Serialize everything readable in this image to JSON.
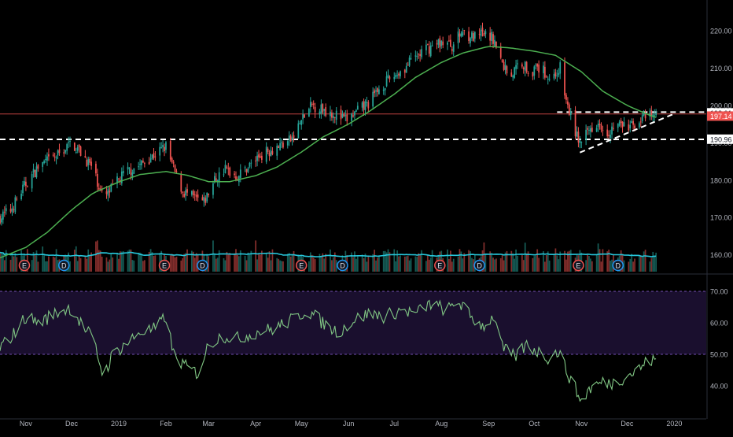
{
  "theme": {
    "background": "#000000",
    "axis_text": "#b2b5be",
    "up_color": "#26a69a",
    "down_color": "#ef5350",
    "ma_color": "#4caf50",
    "volume_ma_color": "#26c6da",
    "rsi_color": "#81c784",
    "rsi_band": "#1a0f2e",
    "rsi_band_line": "#7e57c2",
    "resistance_color": "#ef5350",
    "trendline_color": "#ffffff",
    "earnings_color": "#ef5350",
    "dividend_color": "#2196f3"
  },
  "chart_data": [
    {
      "type": "candlestick",
      "panel": "price",
      "ylim": [
        155.5,
        224
      ],
      "y_ticks": [
        "220.00",
        "210.00",
        "200.00",
        "190.00",
        "180.00",
        "170.00",
        "160.00"
      ],
      "y_tick_values": [
        220,
        210,
        200,
        190,
        180,
        170,
        160
      ],
      "price_labels": [
        {
          "text": "198.01",
          "value": 198.01,
          "style": "white"
        },
        {
          "text": "197.14",
          "value": 197.14,
          "style": "red"
        },
        {
          "text": "190.96",
          "value": 190.96,
          "style": "white"
        }
      ],
      "horizontal_lines": [
        {
          "name": "resistance-line",
          "value": 197.7,
          "style": "solid-red"
        },
        {
          "name": "upper-dashed-line",
          "value": 198.2,
          "style": "dashed-white",
          "from_date": "2019-10-16"
        },
        {
          "name": "lower-dashed-line",
          "value": 190.9,
          "style": "dashed-white",
          "from_date": "2018-10-15"
        }
      ],
      "trendline": {
        "from": [
          "2019-10-31",
          187.4
        ],
        "to": [
          "2019-12-31",
          197.6
        ]
      },
      "moving_average_anchors": [
        [
          "2018-10-15",
          159.2
        ],
        [
          "2018-11-01",
          162
        ],
        [
          "2018-11-15",
          166
        ],
        [
          "2018-12-01",
          172
        ],
        [
          "2018-12-15",
          176.5
        ],
        [
          "2019-01-01",
          179.5
        ],
        [
          "2019-01-15",
          181.5
        ],
        [
          "2019-02-01",
          182.3
        ],
        [
          "2019-02-15",
          181.3
        ],
        [
          "2019-03-01",
          179.6
        ],
        [
          "2019-03-15",
          179.6
        ],
        [
          "2019-04-01",
          181.2
        ],
        [
          "2019-04-15",
          183.5
        ],
        [
          "2019-05-01",
          187.5
        ],
        [
          "2019-05-15",
          191.5
        ],
        [
          "2019-06-01",
          195
        ],
        [
          "2019-06-15",
          198.5
        ],
        [
          "2019-07-01",
          203
        ],
        [
          "2019-07-15",
          207.5
        ],
        [
          "2019-08-01",
          211.5
        ],
        [
          "2019-08-15",
          214
        ],
        [
          "2019-09-01",
          215.8
        ],
        [
          "2019-09-15",
          215.4
        ],
        [
          "2019-10-01",
          214.5
        ],
        [
          "2019-10-15",
          213.4
        ],
        [
          "2019-11-01",
          209
        ],
        [
          "2019-11-15",
          203.8
        ],
        [
          "2019-12-01",
          200
        ],
        [
          "2019-12-15",
          197.5
        ],
        [
          "2019-12-20",
          196.8
        ]
      ],
      "close_anchors": [
        [
          "2018-10-15",
          170
        ],
        [
          "2018-10-22",
          172
        ],
        [
          "2018-11-01",
          179
        ],
        [
          "2018-11-10",
          184
        ],
        [
          "2018-11-20",
          186
        ],
        [
          "2018-12-01",
          190
        ],
        [
          "2018-12-08",
          187
        ],
        [
          "2018-12-15",
          183
        ],
        [
          "2018-12-22",
          175
        ],
        [
          "2018-12-28",
          178
        ],
        [
          "2019-01-05",
          182
        ],
        [
          "2019-01-15",
          184
        ],
        [
          "2019-01-25",
          187
        ],
        [
          "2019-02-01",
          189
        ],
        [
          "2019-02-06",
          183
        ],
        [
          "2019-02-12",
          177
        ],
        [
          "2019-02-20",
          175
        ],
        [
          "2019-02-26",
          174
        ],
        [
          "2019-03-05",
          180
        ],
        [
          "2019-03-12",
          183
        ],
        [
          "2019-03-20",
          181
        ],
        [
          "2019-03-28",
          184
        ],
        [
          "2019-04-05",
          187
        ],
        [
          "2019-04-15",
          189
        ],
        [
          "2019-04-25",
          191
        ],
        [
          "2019-05-01",
          196
        ],
        [
          "2019-05-08",
          200
        ],
        [
          "2019-05-15",
          199
        ],
        [
          "2019-05-22",
          198
        ],
        [
          "2019-05-30",
          196
        ],
        [
          "2019-06-06",
          198
        ],
        [
          "2019-06-15",
          201
        ],
        [
          "2019-06-22",
          205
        ],
        [
          "2019-07-01",
          208
        ],
        [
          "2019-07-08",
          210
        ],
        [
          "2019-07-15",
          213
        ],
        [
          "2019-07-22",
          215
        ],
        [
          "2019-08-01",
          217
        ],
        [
          "2019-08-08",
          216
        ],
        [
          "2019-08-15",
          220
        ],
        [
          "2019-08-22",
          218
        ],
        [
          "2019-08-28",
          219
        ],
        [
          "2019-09-04",
          218
        ],
        [
          "2019-09-10",
          211
        ],
        [
          "2019-09-16",
          208
        ],
        [
          "2019-09-22",
          212
        ],
        [
          "2019-09-28",
          209
        ],
        [
          "2019-10-05",
          210
        ],
        [
          "2019-10-12",
          207
        ],
        [
          "2019-10-18",
          210
        ],
        [
          "2019-10-22",
          201
        ],
        [
          "2019-10-28",
          193
        ],
        [
          "2019-11-01",
          189
        ],
        [
          "2019-11-05",
          193
        ],
        [
          "2019-11-12",
          196
        ],
        [
          "2019-11-18",
          193
        ],
        [
          "2019-11-25",
          195
        ],
        [
          "2019-12-02",
          194
        ],
        [
          "2019-12-09",
          196
        ],
        [
          "2019-12-15",
          197
        ],
        [
          "2019-12-20",
          197.14
        ]
      ]
    },
    {
      "type": "bar",
      "panel": "volume",
      "overlay": "volume-moving-average",
      "event_markers": [
        {
          "date": "2018-10-31",
          "label": "E",
          "kind": "earnings"
        },
        {
          "date": "2018-11-26",
          "label": "D",
          "kind": "dividend"
        },
        {
          "date": "2019-01-31",
          "label": "E",
          "kind": "earnings"
        },
        {
          "date": "2019-02-25",
          "label": "D",
          "kind": "dividend"
        },
        {
          "date": "2019-05-01",
          "label": "E",
          "kind": "earnings"
        },
        {
          "date": "2019-05-28",
          "label": "D",
          "kind": "dividend"
        },
        {
          "date": "2019-07-31",
          "label": "E",
          "kind": "earnings"
        },
        {
          "date": "2019-08-26",
          "label": "D",
          "kind": "dividend"
        },
        {
          "date": "2019-10-30",
          "label": "E",
          "kind": "earnings"
        },
        {
          "date": "2019-11-25",
          "label": "D",
          "kind": "dividend"
        }
      ]
    },
    {
      "type": "line",
      "panel": "rsi",
      "ylim": [
        30,
        75
      ],
      "y_ticks": [
        "70.00",
        "60.00",
        "50.00",
        "40.00"
      ],
      "y_tick_values": [
        70,
        60,
        50,
        40
      ],
      "band": [
        50,
        70
      ],
      "rsi_anchors": [
        [
          "2018-10-15",
          52
        ],
        [
          "2018-10-25",
          57
        ],
        [
          "2018-11-01",
          62
        ],
        [
          "2018-11-10",
          60
        ],
        [
          "2018-11-20",
          63
        ],
        [
          "2018-12-01",
          65
        ],
        [
          "2018-12-08",
          59
        ],
        [
          "2018-12-15",
          55
        ],
        [
          "2018-12-22",
          43
        ],
        [
          "2018-12-28",
          50
        ],
        [
          "2019-01-05",
          53
        ],
        [
          "2019-01-15",
          57
        ],
        [
          "2019-01-25",
          58
        ],
        [
          "2019-02-01",
          62
        ],
        [
          "2019-02-06",
          50
        ],
        [
          "2019-02-14",
          46
        ],
        [
          "2019-02-22",
          44
        ],
        [
          "2019-03-01",
          53
        ],
        [
          "2019-03-10",
          56
        ],
        [
          "2019-03-20",
          55
        ],
        [
          "2019-04-01",
          57
        ],
        [
          "2019-04-12",
          58
        ],
        [
          "2019-04-25",
          61
        ],
        [
          "2019-05-05",
          64
        ],
        [
          "2019-05-15",
          60
        ],
        [
          "2019-05-25",
          57
        ],
        [
          "2019-06-05",
          61
        ],
        [
          "2019-06-15",
          63
        ],
        [
          "2019-06-25",
          62
        ],
        [
          "2019-07-05",
          64
        ],
        [
          "2019-07-15",
          63
        ],
        [
          "2019-07-25",
          66
        ],
        [
          "2019-08-05",
          64
        ],
        [
          "2019-08-12",
          67
        ],
        [
          "2019-08-20",
          62
        ],
        [
          "2019-08-28",
          59
        ],
        [
          "2019-09-05",
          62
        ],
        [
          "2019-09-10",
          52
        ],
        [
          "2019-09-18",
          49
        ],
        [
          "2019-09-26",
          53
        ],
        [
          "2019-10-03",
          51
        ],
        [
          "2019-10-10",
          49
        ],
        [
          "2019-10-17",
          51
        ],
        [
          "2019-10-22",
          45
        ],
        [
          "2019-10-28",
          39
        ],
        [
          "2019-11-01",
          35
        ],
        [
          "2019-11-06",
          39
        ],
        [
          "2019-11-14",
          41
        ],
        [
          "2019-11-22",
          41
        ],
        [
          "2019-11-30",
          43
        ],
        [
          "2019-12-08",
          45
        ],
        [
          "2019-12-15",
          48
        ],
        [
          "2019-12-20",
          48
        ]
      ]
    }
  ],
  "x_axis": {
    "range": [
      "2018-10-15",
      "2020-01-22"
    ],
    "labels": [
      {
        "date": "2018-11-01",
        "label": "Nov"
      },
      {
        "date": "2018-12-01",
        "label": "Dec"
      },
      {
        "date": "2019-01-01",
        "label": "2019"
      },
      {
        "date": "2019-02-01",
        "label": "Feb"
      },
      {
        "date": "2019-03-01",
        "label": "Mar"
      },
      {
        "date": "2019-04-01",
        "label": "Apr"
      },
      {
        "date": "2019-05-01",
        "label": "May"
      },
      {
        "date": "2019-06-01",
        "label": "Jun"
      },
      {
        "date": "2019-07-01",
        "label": "Jul"
      },
      {
        "date": "2019-08-01",
        "label": "Aug"
      },
      {
        "date": "2019-09-01",
        "label": "Sep"
      },
      {
        "date": "2019-10-01",
        "label": "Oct"
      },
      {
        "date": "2019-11-01",
        "label": "Nov"
      },
      {
        "date": "2019-12-01",
        "label": "Dec"
      },
      {
        "date": "2020-01-01",
        "label": "2020"
      }
    ]
  }
}
